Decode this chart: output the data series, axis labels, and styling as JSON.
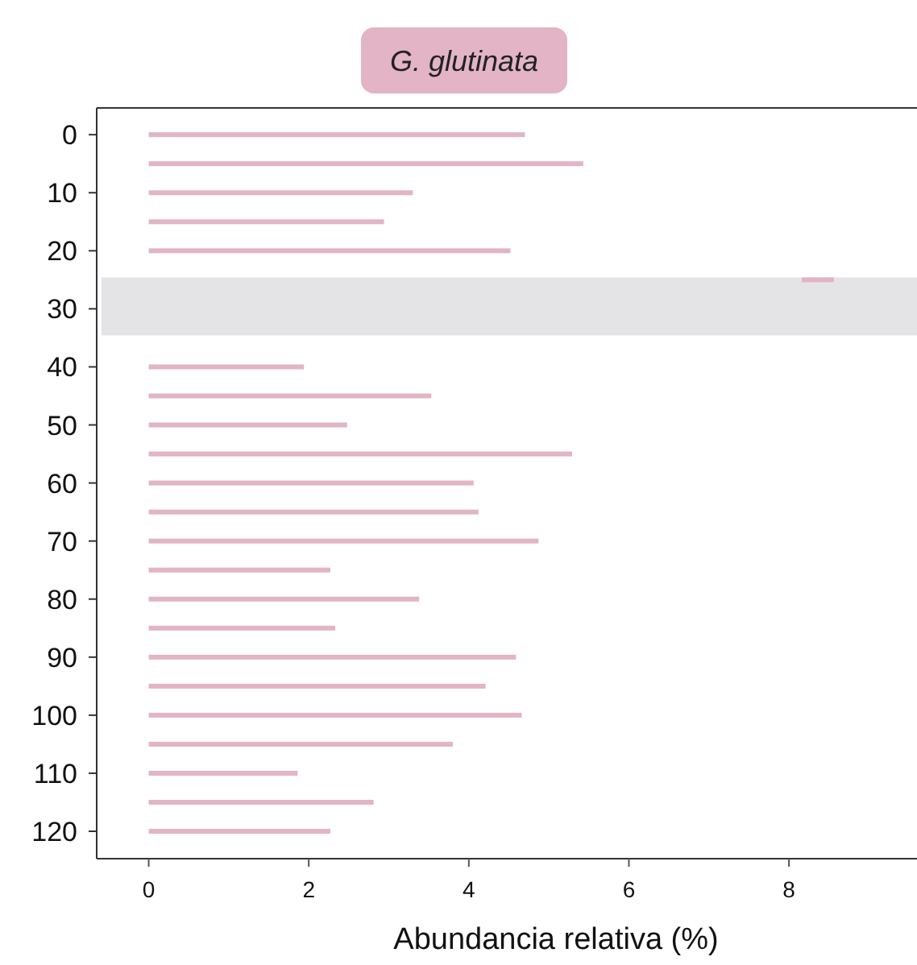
{
  "chart_data": {
    "type": "bar",
    "orientation": "horizontal",
    "title": "G. glutinata",
    "xlabel": "Abundancia relativa (%)",
    "categories": [
      "0",
      null,
      "10",
      null,
      "20",
      null,
      "30",
      null,
      "40",
      null,
      "50",
      null,
      "60",
      null,
      "70",
      null,
      "80",
      null,
      "90",
      null,
      "100",
      null,
      "110",
      null,
      "120"
    ],
    "values": [
      4.7,
      5.43,
      3.3,
      2.94,
      4.52,
      0.4,
      null,
      null,
      1.94,
      3.53,
      2.48,
      5.29,
      4.06,
      4.12,
      4.87,
      2.27,
      3.38,
      2.33,
      4.59,
      4.21,
      4.66,
      3.8,
      1.86,
      2.81,
      2.27
    ],
    "base": [
      0,
      0,
      0,
      0,
      0,
      8.16,
      null,
      null,
      0,
      0,
      0,
      0,
      0,
      0,
      0,
      0,
      0,
      0,
      0,
      0,
      0,
      0,
      0,
      0,
      0
    ],
    "color": "#e2b4c5",
    "xlim": [
      -0.65,
      9.6
    ],
    "xticks": [
      0,
      2,
      4,
      6,
      8
    ],
    "grid": false
  }
}
